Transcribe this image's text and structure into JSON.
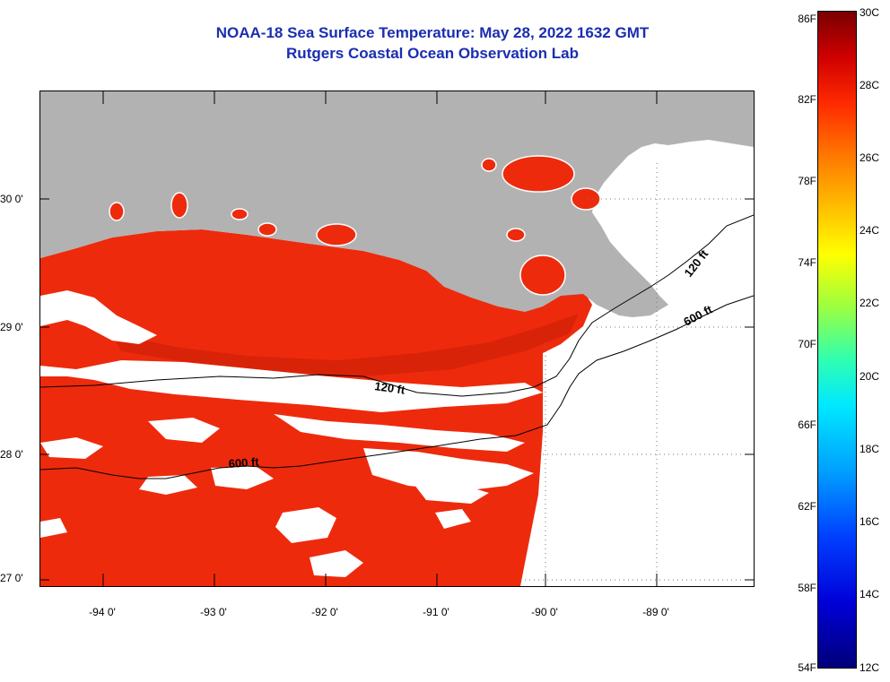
{
  "title": {
    "line1": "NOAA-18 Sea Surface Temperature:  May 28, 2022 1632 GMT",
    "line2": "Rutgers Coastal Ocean Observation Lab"
  },
  "map": {
    "colors": {
      "land": "#b2b2b2",
      "sst_main": "#ee2a0d",
      "sst_warm": "#c81e08",
      "cloud": "#ffffff",
      "title": "#1a2eb0"
    },
    "lat_labels": [
      "30 0'",
      "29 0'",
      "28 0'",
      "27 0'"
    ],
    "lon_labels": [
      "-94 0'",
      "-93 0'",
      "-92 0'",
      "-91 0'",
      "-90 0'",
      "-89 0'"
    ],
    "contours": [
      {
        "label": "120 ft"
      },
      {
        "label": "600 ft"
      },
      {
        "label": "120 ft"
      },
      {
        "label": "600 ft"
      }
    ]
  },
  "colorbar": {
    "f_labels": [
      "86F",
      "82F",
      "78F",
      "74F",
      "70F",
      "66F",
      "62F",
      "58F",
      "54F"
    ],
    "c_labels": [
      "30C",
      "28C",
      "26C",
      "24C",
      "22C",
      "20C",
      "18C",
      "16C",
      "14C",
      "12C"
    ]
  }
}
